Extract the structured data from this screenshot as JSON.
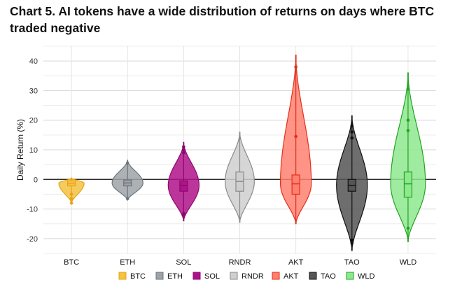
{
  "chart_data": {
    "type": "violin",
    "title": "Chart 5. AI tokens have a wide distribution of returns on days where BTC traded negative",
    "ylabel": "Daily Return (%)",
    "xlabel": "",
    "ylim": [
      -25,
      45
    ],
    "yticks": [
      -20,
      -10,
      0,
      10,
      20,
      30,
      40
    ],
    "grid": true,
    "legend_position": "bottom",
    "categories": [
      "BTC",
      "ETH",
      "SOL",
      "RNDR",
      "AKT",
      "TAO",
      "WLD"
    ],
    "series": [
      {
        "name": "BTC",
        "color": "#f5c242",
        "edge": "#e8a317",
        "min": -8,
        "max": 0.5,
        "q1": -2.2,
        "median": -1.3,
        "q3": -0.5,
        "maxwidth": 0.45,
        "outliers": [
          -5,
          -6.5,
          -8
        ]
      },
      {
        "name": "ETH",
        "color": "#9ea3a8",
        "edge": "#6e7377",
        "min": -7,
        "max": 6.5,
        "q1": -2.2,
        "median": -1.2,
        "q3": -0.2,
        "maxwidth": 0.55,
        "outliers": [
          5.5,
          -6.5
        ]
      },
      {
        "name": "SOL",
        "color": "#b0128a",
        "edge": "#8a0a6c",
        "min": -14,
        "max": 12.5,
        "q1": -4,
        "median": -2,
        "q3": -0.5,
        "maxwidth": 0.55,
        "outliers": [
          11,
          10,
          9,
          -11.5,
          -12
        ]
      },
      {
        "name": "RNDR",
        "color": "#cfcfcf",
        "edge": "#8a8a8a",
        "min": -14.5,
        "max": 16,
        "q1": -4,
        "median": -0.7,
        "q3": 2.5,
        "maxwidth": 0.52,
        "outliers": []
      },
      {
        "name": "AKT",
        "color": "#ff8070",
        "edge": "#e0301c",
        "min": -15,
        "max": 42,
        "q1": -5,
        "median": -1.5,
        "q3": 1.5,
        "maxwidth": 0.55,
        "outliers": [
          38,
          14.5
        ]
      },
      {
        "name": "TAO",
        "color": "#555555",
        "edge": "#111111",
        "min": -24,
        "max": 21.5,
        "q1": -4,
        "median": -2,
        "q3": 0,
        "maxwidth": 0.55,
        "outliers": [
          18,
          16,
          14,
          -20.5,
          -21.5
        ]
      },
      {
        "name": "WLD",
        "color": "#8ee88e",
        "edge": "#22a322",
        "min": -21,
        "max": 36,
        "q1": -6,
        "median": -1.5,
        "q3": 2.5,
        "maxwidth": 0.62,
        "outliers": [
          30.5,
          20,
          16.5,
          -16.5
        ]
      }
    ]
  }
}
